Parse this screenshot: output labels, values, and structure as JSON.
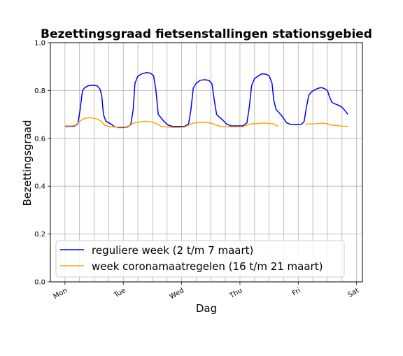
{
  "chart_data": {
    "type": "line",
    "title": "Bezettingsgraad fietsenstallingen stationsgebied",
    "xlabel": "Dag",
    "ylabel": "Bezettingsgraad",
    "x_tick_labels": [
      "Mon",
      "Tue",
      "Wed",
      "Thu",
      "Fri",
      "Sat"
    ],
    "x_ticks": [
      0,
      1,
      2,
      3,
      4,
      5
    ],
    "xlim": [
      -0.25,
      5.1
    ],
    "ylim": [
      0.0,
      1.0
    ],
    "y_ticks": [
      0.0,
      0.2,
      0.4,
      0.6,
      0.8,
      1.0
    ],
    "y_tick_labels": [
      "0.0",
      "0.2",
      "0.4",
      "0.6",
      "0.8",
      "1.0"
    ],
    "x_minor_grid_step": 0.25,
    "grid": true,
    "legend_position": "lower-left",
    "series": [
      {
        "name": "reguliere week (2 t/m 7 maart)",
        "color": "#0000ff",
        "points": [
          [
            0.0,
            0.65
          ],
          [
            0.08,
            0.65
          ],
          [
            0.16,
            0.651
          ],
          [
            0.22,
            0.66
          ],
          [
            0.26,
            0.72
          ],
          [
            0.3,
            0.8
          ],
          [
            0.34,
            0.812
          ],
          [
            0.4,
            0.82
          ],
          [
            0.47,
            0.822
          ],
          [
            0.55,
            0.82
          ],
          [
            0.6,
            0.806
          ],
          [
            0.63,
            0.78
          ],
          [
            0.66,
            0.7
          ],
          [
            0.7,
            0.672
          ],
          [
            0.75,
            0.665
          ],
          [
            0.8,
            0.658
          ],
          [
            0.85,
            0.648
          ],
          [
            0.92,
            0.645
          ],
          [
            1.0,
            0.645
          ],
          [
            1.08,
            0.648
          ],
          [
            1.13,
            0.66
          ],
          [
            1.17,
            0.72
          ],
          [
            1.2,
            0.83
          ],
          [
            1.25,
            0.86
          ],
          [
            1.32,
            0.87
          ],
          [
            1.4,
            0.875
          ],
          [
            1.47,
            0.872
          ],
          [
            1.52,
            0.862
          ],
          [
            1.56,
            0.8
          ],
          [
            1.6,
            0.7
          ],
          [
            1.65,
            0.685
          ],
          [
            1.7,
            0.67
          ],
          [
            1.77,
            0.655
          ],
          [
            1.85,
            0.65
          ],
          [
            1.95,
            0.65
          ],
          [
            2.05,
            0.65
          ],
          [
            2.12,
            0.66
          ],
          [
            2.16,
            0.72
          ],
          [
            2.2,
            0.81
          ],
          [
            2.25,
            0.83
          ],
          [
            2.32,
            0.843
          ],
          [
            2.4,
            0.845
          ],
          [
            2.47,
            0.842
          ],
          [
            2.52,
            0.828
          ],
          [
            2.56,
            0.76
          ],
          [
            2.6,
            0.7
          ],
          [
            2.65,
            0.688
          ],
          [
            2.7,
            0.678
          ],
          [
            2.77,
            0.66
          ],
          [
            2.85,
            0.652
          ],
          [
            2.95,
            0.652
          ],
          [
            3.05,
            0.652
          ],
          [
            3.12,
            0.665
          ],
          [
            3.16,
            0.73
          ],
          [
            3.2,
            0.82
          ],
          [
            3.25,
            0.85
          ],
          [
            3.32,
            0.862
          ],
          [
            3.38,
            0.87
          ],
          [
            3.45,
            0.868
          ],
          [
            3.5,
            0.862
          ],
          [
            3.55,
            0.83
          ],
          [
            3.58,
            0.76
          ],
          [
            3.62,
            0.72
          ],
          [
            3.68,
            0.705
          ],
          [
            3.73,
            0.69
          ],
          [
            3.8,
            0.665
          ],
          [
            3.87,
            0.658
          ],
          [
            3.95,
            0.657
          ],
          [
            4.05,
            0.658
          ],
          [
            4.1,
            0.67
          ],
          [
            4.14,
            0.73
          ],
          [
            4.18,
            0.78
          ],
          [
            4.23,
            0.795
          ],
          [
            4.3,
            0.805
          ],
          [
            4.35,
            0.81
          ],
          [
            4.4,
            0.812
          ],
          [
            4.45,
            0.808
          ],
          [
            4.5,
            0.8
          ],
          [
            4.54,
            0.77
          ],
          [
            4.58,
            0.75
          ],
          [
            4.65,
            0.742
          ],
          [
            4.72,
            0.735
          ],
          [
            4.77,
            0.725
          ],
          [
            4.82,
            0.71
          ],
          [
            4.85,
            0.7
          ]
        ]
      },
      {
        "name": "week coronamaatregelen (16 t/m 21 maart)",
        "color": "#ffa500",
        "points": [
          [
            0.0,
            0.652
          ],
          [
            0.1,
            0.652
          ],
          [
            0.18,
            0.655
          ],
          [
            0.26,
            0.672
          ],
          [
            0.32,
            0.682
          ],
          [
            0.4,
            0.686
          ],
          [
            0.48,
            0.685
          ],
          [
            0.56,
            0.68
          ],
          [
            0.62,
            0.672
          ],
          [
            0.68,
            0.655
          ],
          [
            0.75,
            0.65
          ],
          [
            0.85,
            0.647
          ],
          [
            0.95,
            0.647
          ],
          [
            1.05,
            0.648
          ],
          [
            1.12,
            0.655
          ],
          [
            1.2,
            0.666
          ],
          [
            1.3,
            0.669
          ],
          [
            1.4,
            0.671
          ],
          [
            1.5,
            0.668
          ],
          [
            1.58,
            0.66
          ],
          [
            1.65,
            0.65
          ],
          [
            1.75,
            0.648
          ],
          [
            1.85,
            0.646
          ],
          [
            1.95,
            0.646
          ],
          [
            2.05,
            0.647
          ],
          [
            2.12,
            0.655
          ],
          [
            2.2,
            0.664
          ],
          [
            2.3,
            0.666
          ],
          [
            2.4,
            0.667
          ],
          [
            2.5,
            0.664
          ],
          [
            2.58,
            0.657
          ],
          [
            2.65,
            0.651
          ],
          [
            2.75,
            0.649
          ],
          [
            2.85,
            0.648
          ],
          [
            2.95,
            0.648
          ],
          [
            3.05,
            0.648
          ],
          [
            3.12,
            0.655
          ],
          [
            3.2,
            0.661
          ],
          [
            3.3,
            0.662
          ],
          [
            3.4,
            0.664
          ],
          [
            3.5,
            0.662
          ],
          [
            3.58,
            0.66
          ],
          [
            3.62,
            0.655
          ],
          [
            3.66,
            0.65
          ],
          null,
          [
            4.12,
            0.66
          ],
          [
            4.2,
            0.66
          ],
          [
            4.3,
            0.661
          ],
          [
            4.4,
            0.663
          ],
          [
            4.48,
            0.662
          ],
          [
            4.55,
            0.656
          ],
          [
            4.65,
            0.654
          ],
          [
            4.75,
            0.651
          ],
          [
            4.85,
            0.65
          ]
        ]
      }
    ]
  }
}
